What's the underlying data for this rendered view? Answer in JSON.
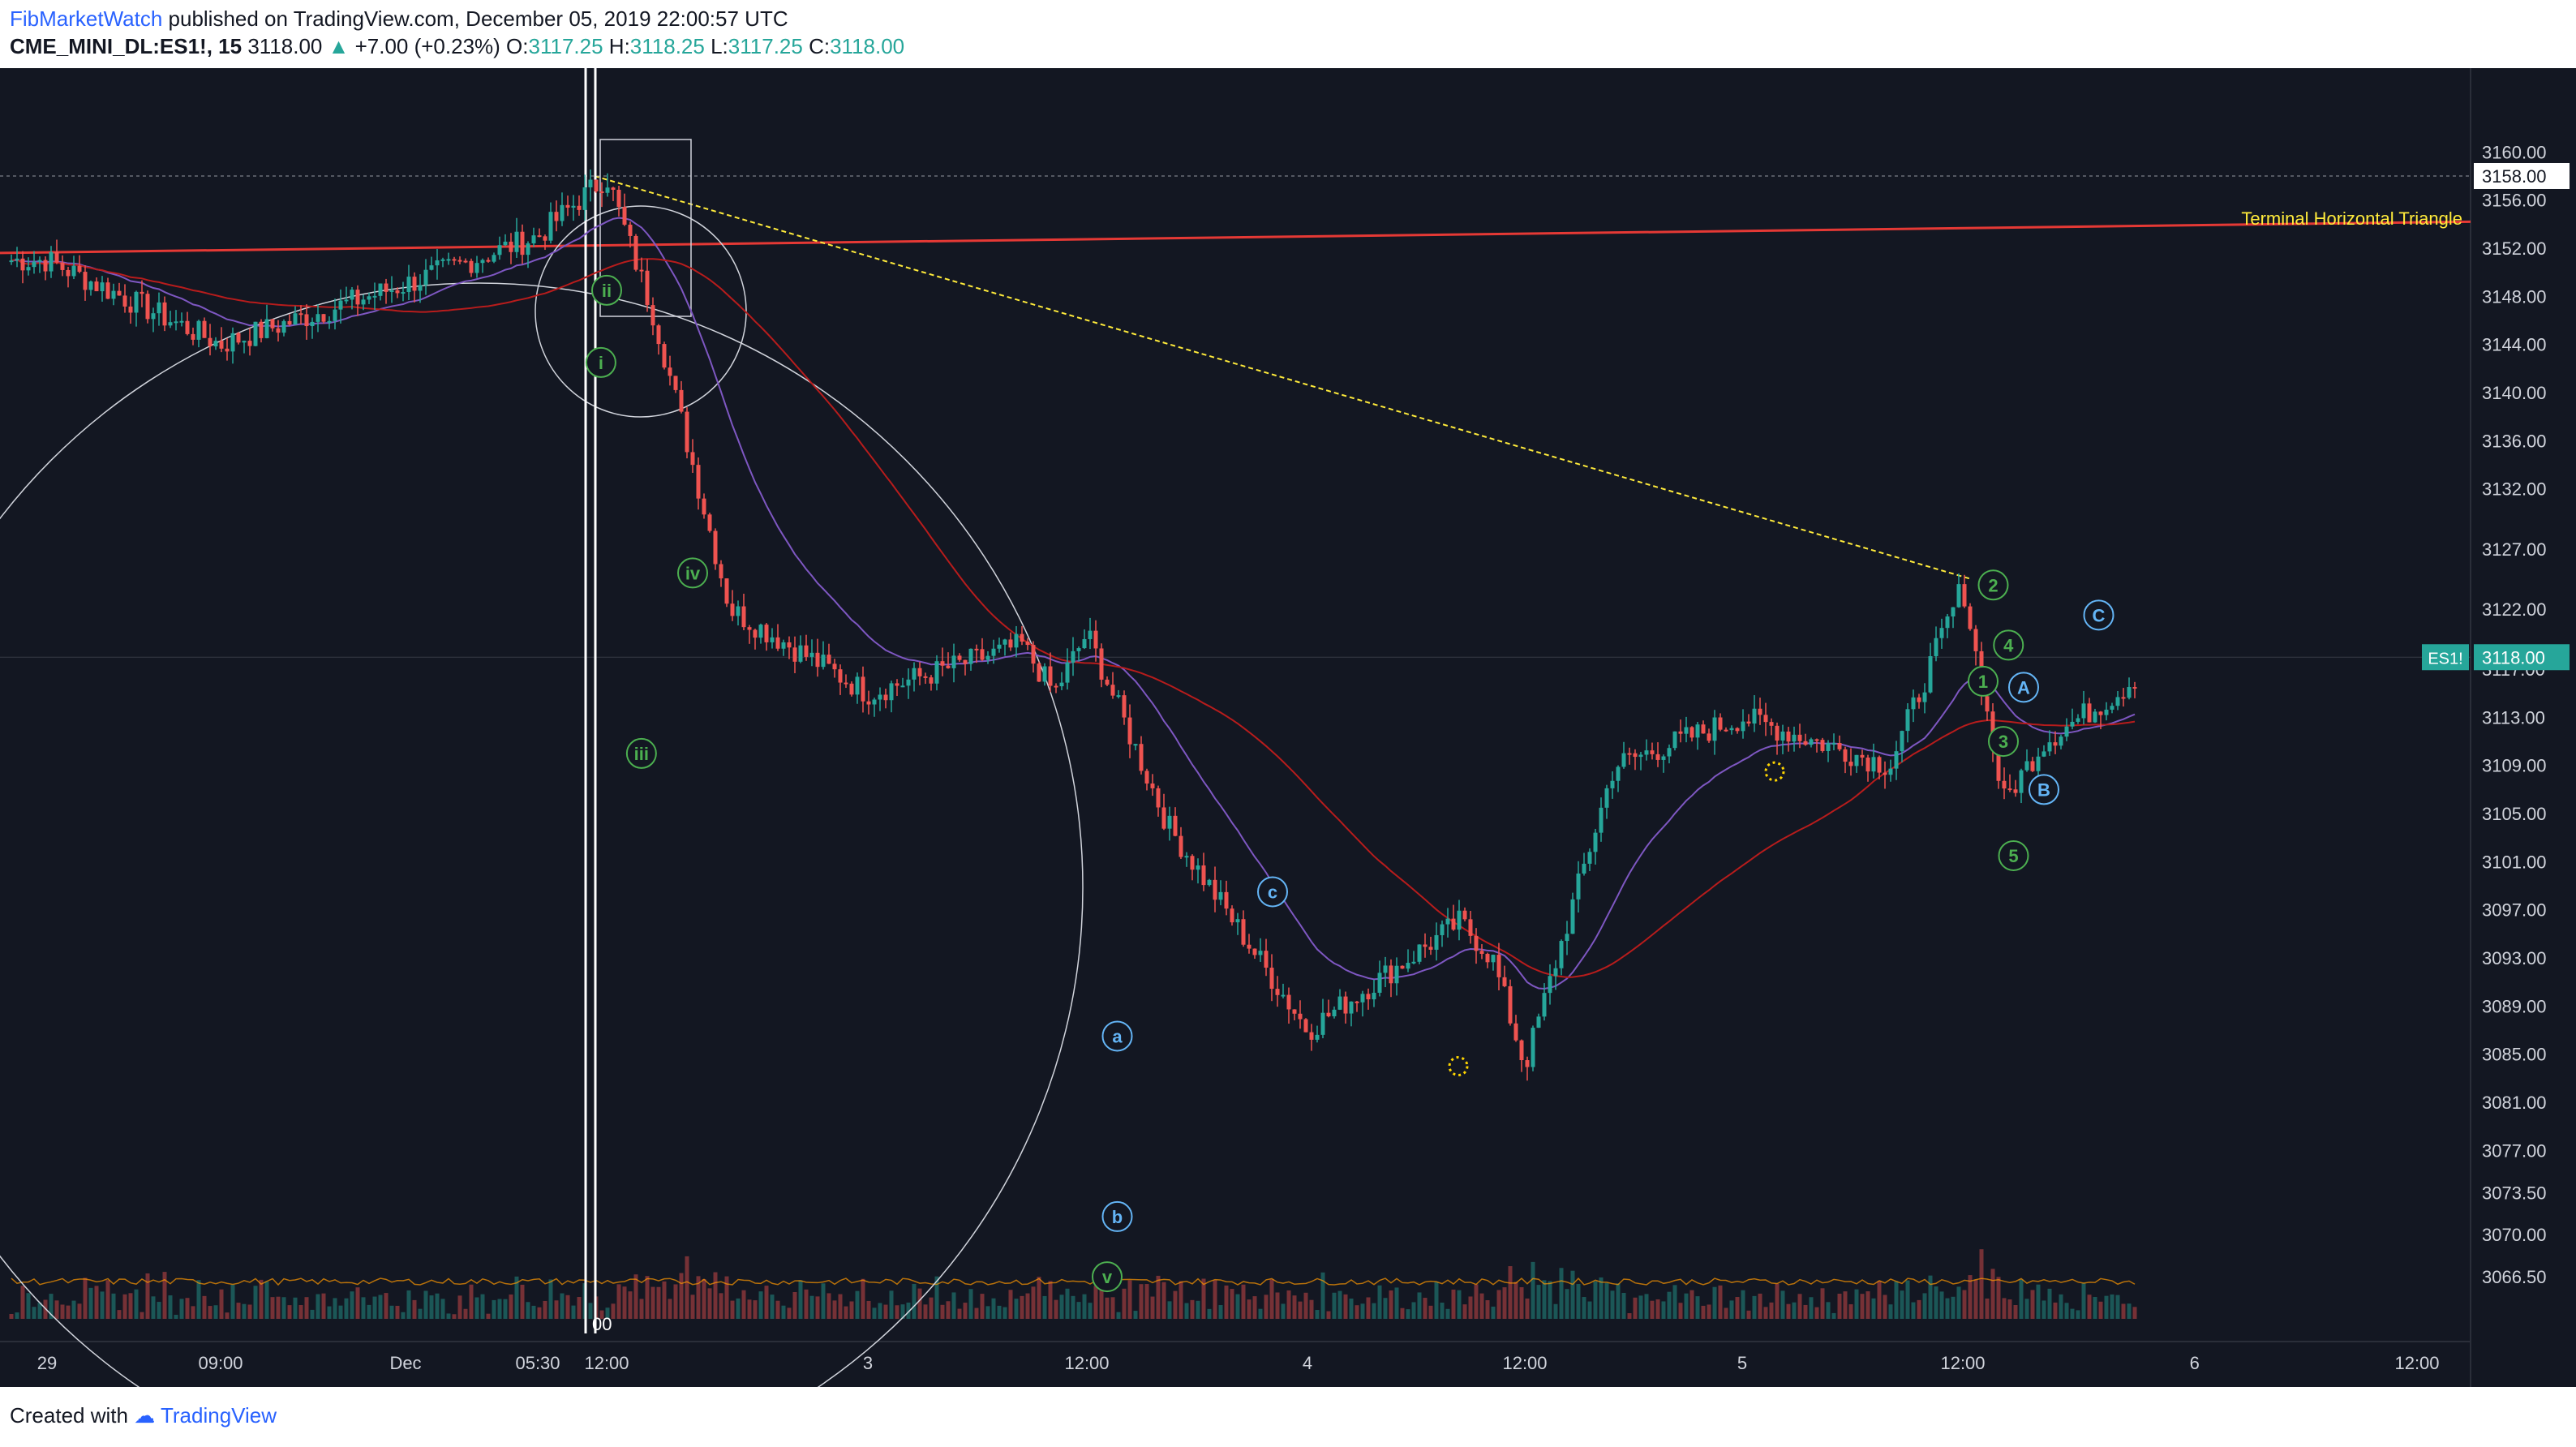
{
  "header": {
    "author": "FibMarketWatch",
    "published_text": " published on TradingView.com, December 05, 2019 22:00:57 UTC",
    "symbol": "CME_MINI_DL:ES1!, 15",
    "last": "3118.00",
    "change": "+7.00 (+0.23%)",
    "o_label": "O:",
    "o": "3117.25",
    "h_label": "H:",
    "h": "3118.25",
    "l_label": "L:",
    "l": "3117.25",
    "c_label": "C:",
    "c": "3118.00"
  },
  "footer": {
    "created_with": "Created with",
    "brand": "TradingView"
  },
  "colors": {
    "background": "#131722",
    "up": "#26a69a",
    "down": "#ef5350",
    "resistance": "#e53935",
    "ema": "#7e57c2",
    "sma": "#b71c1c",
    "annotation": "#ffeb3b",
    "wave_green": "#4caf50",
    "wave_blue": "#64b5f6"
  },
  "chart_data": {
    "type": "line",
    "title": "CME_MINI_DL:ES1!, 15",
    "ylabel": "",
    "ylim": [
      3063,
      3164
    ],
    "y_ticks": [
      "3160.00",
      "3156.00",
      "3152.00",
      "3148.00",
      "3144.00",
      "3140.00",
      "3136.00",
      "3132.00",
      "3127.00",
      "3122.00",
      "3117.00",
      "3113.00",
      "3109.00",
      "3105.00",
      "3101.00",
      "3097.00",
      "3093.00",
      "3089.00",
      "3085.00",
      "3081.00",
      "3077.00",
      "3073.50",
      "3070.00",
      "3066.50"
    ],
    "x_ticks": [
      "29",
      "09:00",
      "Dec",
      "05:30",
      "12:00",
      "3",
      "12:00",
      "4",
      "12:00",
      "5",
      "12:00",
      "6",
      "12:00"
    ],
    "x": [
      "Nov 29",
      "Nov 29 09:00",
      "Dec 2 00:00",
      "Dec 2 05:30",
      "Dec 2 08:30",
      "Dec 2 12:00",
      "Dec 2 16:00",
      "Dec 3 00:00",
      "Dec 3 08:00",
      "Dec 3 10:00",
      "Dec 3 12:00",
      "Dec 3 16:00",
      "Dec 4 00:00",
      "Dec 4 08:00",
      "Dec 4 10:00",
      "Dec 4 12:00",
      "Dec 4 16:00",
      "Dec 5 00:00",
      "Dec 5 08:00",
      "Dec 5 12:00",
      "Dec 5 14:00",
      "Dec 5 16:00",
      "Dec 5 20:00",
      "Dec 5 22:00"
    ],
    "series": [
      {
        "values": [
          3151,
          3144,
          3149,
          3153,
          3158,
          3146,
          3122,
          3115,
          3119,
          3115,
          3120,
          3104,
          3087,
          3096,
          3093,
          3084,
          3109,
          3113,
          3109,
          3124,
          3106,
          3111,
          3115,
          3118
        ]
      }
    ],
    "current_price_label": "3118.00",
    "symbol_tag": "ES1!",
    "high_marker": "3158.00",
    "annotation": "Terminal Horizontal Triangle",
    "wave_labels": [
      {
        "text": "i",
        "x": "Dec 2 08:15",
        "y": 3142.5
      },
      {
        "text": "ii",
        "x": "Dec 2 08:30",
        "y": 3148.5
      },
      {
        "text": "iii",
        "x": "Dec 2 11:00",
        "y": 3110
      },
      {
        "text": "iv",
        "x": "Dec 2 14:00",
        "y": 3125
      },
      {
        "text": "v",
        "x": "Dec 3 13:00",
        "y": 3066.5
      },
      {
        "text": "a",
        "x": "Dec 3 13:30",
        "y": 3086.5
      },
      {
        "text": "b",
        "x": "Dec 3 13:30",
        "y": 3071.5
      },
      {
        "text": "c",
        "x": "Dec 3 22:00",
        "y": 3098.5
      },
      {
        "text": "1",
        "x": "Dec 5 13:00",
        "y": 3116
      },
      {
        "text": "2",
        "x": "Dec 5 13:30",
        "y": 3124
      },
      {
        "text": "3",
        "x": "Dec 5 14:00",
        "y": 3111
      },
      {
        "text": "4",
        "x": "Dec 5 14:15",
        "y": 3119
      },
      {
        "text": "5",
        "x": "Dec 5 14:30",
        "y": 3101.5
      },
      {
        "text": "A",
        "x": "Dec 5 15:00",
        "y": 3115.5
      },
      {
        "text": "B",
        "x": "Dec 5 16:00",
        "y": 3107
      },
      {
        "text": "C",
        "x": "Dec 5 19:00",
        "y": 3121.5
      }
    ],
    "volume_label": "00",
    "grid": false
  }
}
